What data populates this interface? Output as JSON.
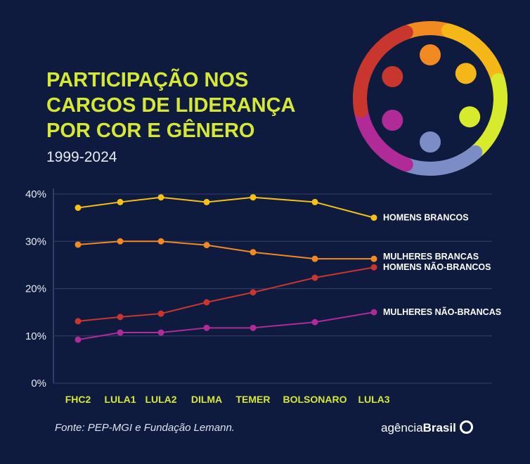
{
  "header": {
    "title_lines": [
      "PARTICIPAÇÃO NOS",
      "CARGOS DE LIDERANÇA",
      "POR COR E GÊNERO"
    ],
    "subtitle": "1999-2024"
  },
  "footer": {
    "source": "Fonte:  PEP-MGI e Fundação Lemann.",
    "brand_prefix": "agência",
    "brand_name": "Brasil"
  },
  "logo": {
    "colors": [
      "#f28a22",
      "#f5b718",
      "#d8ea2c",
      "#7b8cc6",
      "#b02a98",
      "#c8362e"
    ]
  },
  "chart_data": {
    "type": "line",
    "categories": [
      "FHC2",
      "LULA1",
      "LULA2",
      "DILMA",
      "TEMER",
      "BOLSONARO",
      "LULA3"
    ],
    "ylim": [
      0,
      40
    ],
    "yticks": [
      0,
      10,
      20,
      30,
      40
    ],
    "ytick_labels": [
      "0%",
      "10%",
      "20%",
      "30%",
      "40%"
    ],
    "grid": true,
    "legend": "direct labels at right end",
    "series": [
      {
        "name": "HOMENS BRANCOS",
        "color": "#f5c018",
        "values": [
          37.1,
          38.3,
          39.3,
          38.3,
          39.3,
          38.3,
          35.0
        ]
      },
      {
        "name": "MULHERES BRANCAS",
        "color": "#f28a22",
        "values": [
          29.3,
          30.0,
          30.0,
          29.2,
          27.7,
          26.3,
          26.3
        ]
      },
      {
        "name": "HOMENS NÃO-BRANCOS",
        "color": "#c8362e",
        "values": [
          13.1,
          14.0,
          14.7,
          17.1,
          19.2,
          22.3,
          24.5
        ]
      },
      {
        "name": "MULHERES NÃO-BRANCAS",
        "color": "#b02a98",
        "values": [
          9.2,
          10.7,
          10.7,
          11.7,
          11.7,
          12.9,
          15.0
        ]
      }
    ]
  }
}
